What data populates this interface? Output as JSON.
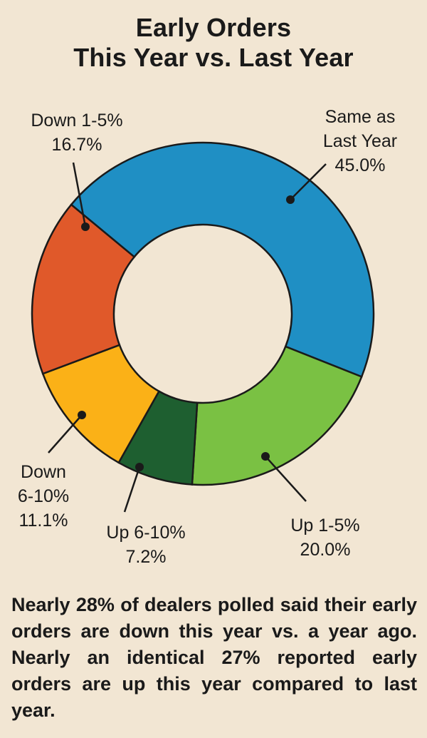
{
  "chart_data": {
    "type": "pie",
    "title": [
      "Early Orders",
      "This Year vs. Last Year"
    ],
    "slices": [
      {
        "name": "Same as Last Year",
        "label_lines": [
          "Same as",
          "Last Year"
        ],
        "value": 45.0,
        "value_label": "45.0%",
        "color": "#1f8fc4"
      },
      {
        "name": "Up 1-5%",
        "label_lines": [
          "Up 1-5%"
        ],
        "value": 20.0,
        "value_label": "20.0%",
        "color": "#7ac143"
      },
      {
        "name": "Up 6-10%",
        "label_lines": [
          "Up 6-10%"
        ],
        "value": 7.2,
        "value_label": "7.2%",
        "color": "#1e5f30"
      },
      {
        "name": "Down 6-10%",
        "label_lines": [
          "Down",
          "6-10%"
        ],
        "value": 11.1,
        "value_label": "11.1%",
        "color": "#fbb117"
      },
      {
        "name": "Down 1-5%",
        "label_lines": [
          "Down 1-5%"
        ],
        "value": 16.7,
        "value_label": "16.7%",
        "color": "#e0592a"
      }
    ]
  },
  "footnote": "Nearly 28% of dealers polled said their early orders are down this year vs. a year ago. Nearly an identical 27% reported early orders are up this year compared to last year."
}
